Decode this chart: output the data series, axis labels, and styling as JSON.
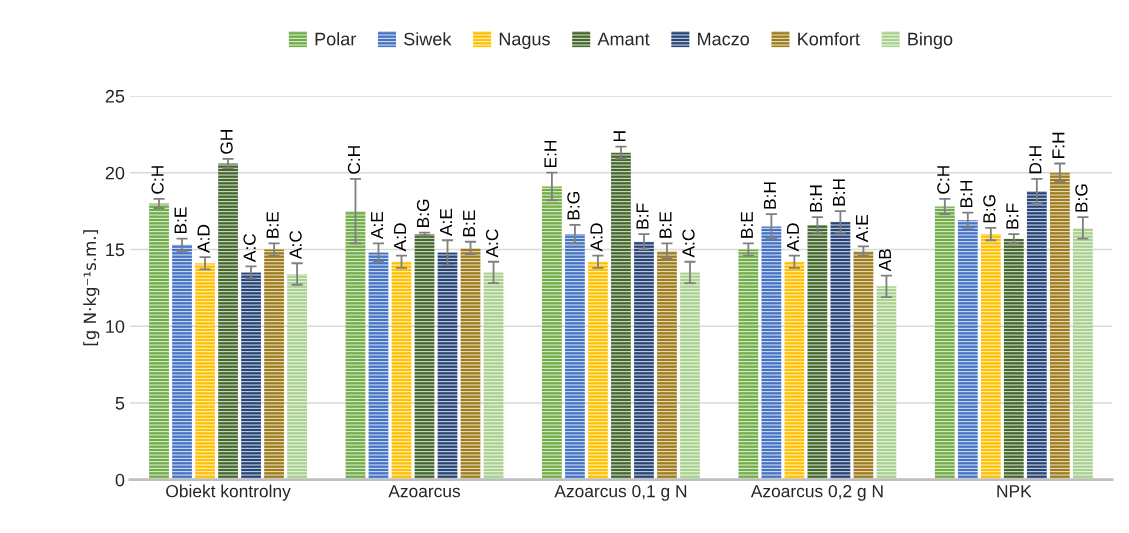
{
  "chart_data": {
    "type": "bar",
    "ylabel": "[g N·kg⁻¹s.m.]",
    "categories": [
      "Obiekt kontrolny",
      "Azoarcus",
      "Azoarcus 0,1 g N",
      "Azoarcus 0,2 g N",
      "NPK"
    ],
    "series": [
      {
        "name": "Polar",
        "color": "#70ad47",
        "values": [
          18.0,
          17.5,
          19.1,
          15.0,
          17.8
        ],
        "errors": [
          0.3,
          2.1,
          0.9,
          0.4,
          0.5
        ],
        "value_labels": [
          "C:H",
          "C:H",
          "E:H",
          "B:E",
          "C:H"
        ]
      },
      {
        "name": "Siwek",
        "color": "#4472c4",
        "values": [
          15.3,
          14.8,
          16.0,
          16.5,
          16.9
        ],
        "errors": [
          0.4,
          0.6,
          0.6,
          0.8,
          0.5
        ],
        "value_labels": [
          "B:E",
          "A:E",
          "B:G",
          "B:H",
          "B:H"
        ]
      },
      {
        "name": "Nagus",
        "color": "#ffc000",
        "values": [
          14.1,
          14.2,
          14.2,
          14.2,
          16.0
        ],
        "errors": [
          0.4,
          0.4,
          0.4,
          0.4,
          0.4
        ],
        "value_labels": [
          "A:D",
          "A:D",
          "A:D",
          "A:D",
          "B:G"
        ]
      },
      {
        "name": "Amant",
        "color": "#43682b",
        "values": [
          20.6,
          16.0,
          21.3,
          16.6,
          15.7
        ],
        "errors": [
          0.3,
          0.1,
          0.4,
          0.5,
          0.3
        ],
        "value_labels": [
          "GH",
          "B:G",
          "H",
          "B:H",
          "B:F"
        ]
      },
      {
        "name": "Maczo",
        "color": "#264478",
        "values": [
          13.5,
          14.8,
          15.5,
          16.8,
          18.8
        ],
        "errors": [
          0.4,
          0.8,
          0.5,
          0.7,
          0.8
        ],
        "value_labels": [
          "A:C",
          "A:E",
          "B:F",
          "B:H",
          "D:H"
        ]
      },
      {
        "name": "Komfort",
        "color": "#9e7b1a",
        "values": [
          15.0,
          15.1,
          14.9,
          14.9,
          20.0
        ],
        "errors": [
          0.4,
          0.4,
          0.5,
          0.3,
          0.6
        ],
        "value_labels": [
          "B:E",
          "B:E",
          "B:E",
          "A:E",
          "F:H"
        ]
      },
      {
        "name": "Bingo",
        "color": "#a9d18e",
        "values": [
          13.4,
          13.5,
          13.5,
          12.6,
          16.4
        ],
        "errors": [
          0.7,
          0.7,
          0.7,
          0.7,
          0.7
        ],
        "value_labels": [
          "A:C",
          "A:C",
          "A:C",
          "AB",
          "B:G"
        ]
      }
    ],
    "ylim": [
      0,
      25
    ],
    "yticks": [
      0,
      5,
      10,
      15,
      20,
      25
    ],
    "grid": "y",
    "legend": "top"
  }
}
